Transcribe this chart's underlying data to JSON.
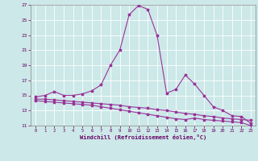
{
  "xlabel": "Windchill (Refroidissement éolien,°C)",
  "background_color": "#cce8e8",
  "grid_color": "#aacccc",
  "line_color": "#993399",
  "marker": "*",
  "xlim": [
    -0.5,
    23.5
  ],
  "ylim": [
    11,
    27
  ],
  "yticks": [
    11,
    13,
    15,
    17,
    19,
    21,
    23,
    25,
    27
  ],
  "xticks": [
    0,
    1,
    2,
    3,
    4,
    5,
    6,
    7,
    8,
    9,
    10,
    11,
    12,
    13,
    14,
    15,
    16,
    17,
    18,
    19,
    20,
    21,
    22,
    23
  ],
  "series1_x": [
    0,
    1,
    2,
    3,
    4,
    5,
    6,
    7,
    8,
    9,
    10,
    11,
    12,
    13,
    14,
    15,
    16,
    17,
    18,
    19,
    20,
    21,
    22,
    23
  ],
  "series1_y": [
    14.8,
    15.0,
    15.5,
    15.0,
    15.0,
    15.2,
    15.6,
    16.4,
    19.0,
    21.0,
    25.7,
    26.9,
    26.4,
    22.9,
    15.3,
    15.8,
    17.7,
    16.5,
    15.0,
    13.5,
    13.0,
    12.3,
    12.2,
    11.3
  ],
  "series2_x": [
    0,
    1,
    2,
    3,
    4,
    5,
    6,
    7,
    8,
    9,
    10,
    11,
    12,
    13,
    14,
    15,
    16,
    17,
    18,
    19,
    20,
    21,
    22,
    23
  ],
  "series2_y": [
    14.5,
    14.5,
    14.4,
    14.3,
    14.2,
    14.1,
    14.0,
    13.9,
    13.8,
    13.7,
    13.5,
    13.4,
    13.3,
    13.1,
    13.0,
    12.8,
    12.6,
    12.5,
    12.3,
    12.2,
    12.0,
    11.9,
    11.8,
    11.7
  ],
  "series3_x": [
    0,
    1,
    2,
    3,
    4,
    5,
    6,
    7,
    8,
    9,
    10,
    11,
    12,
    13,
    14,
    15,
    16,
    17,
    18,
    19,
    20,
    21,
    22,
    23
  ],
  "series3_y": [
    14.3,
    14.2,
    14.1,
    14.0,
    13.9,
    13.8,
    13.7,
    13.5,
    13.3,
    13.1,
    12.9,
    12.7,
    12.5,
    12.3,
    12.1,
    11.9,
    11.8,
    12.0,
    11.8,
    11.7,
    11.6,
    11.5,
    11.4,
    11.0
  ]
}
